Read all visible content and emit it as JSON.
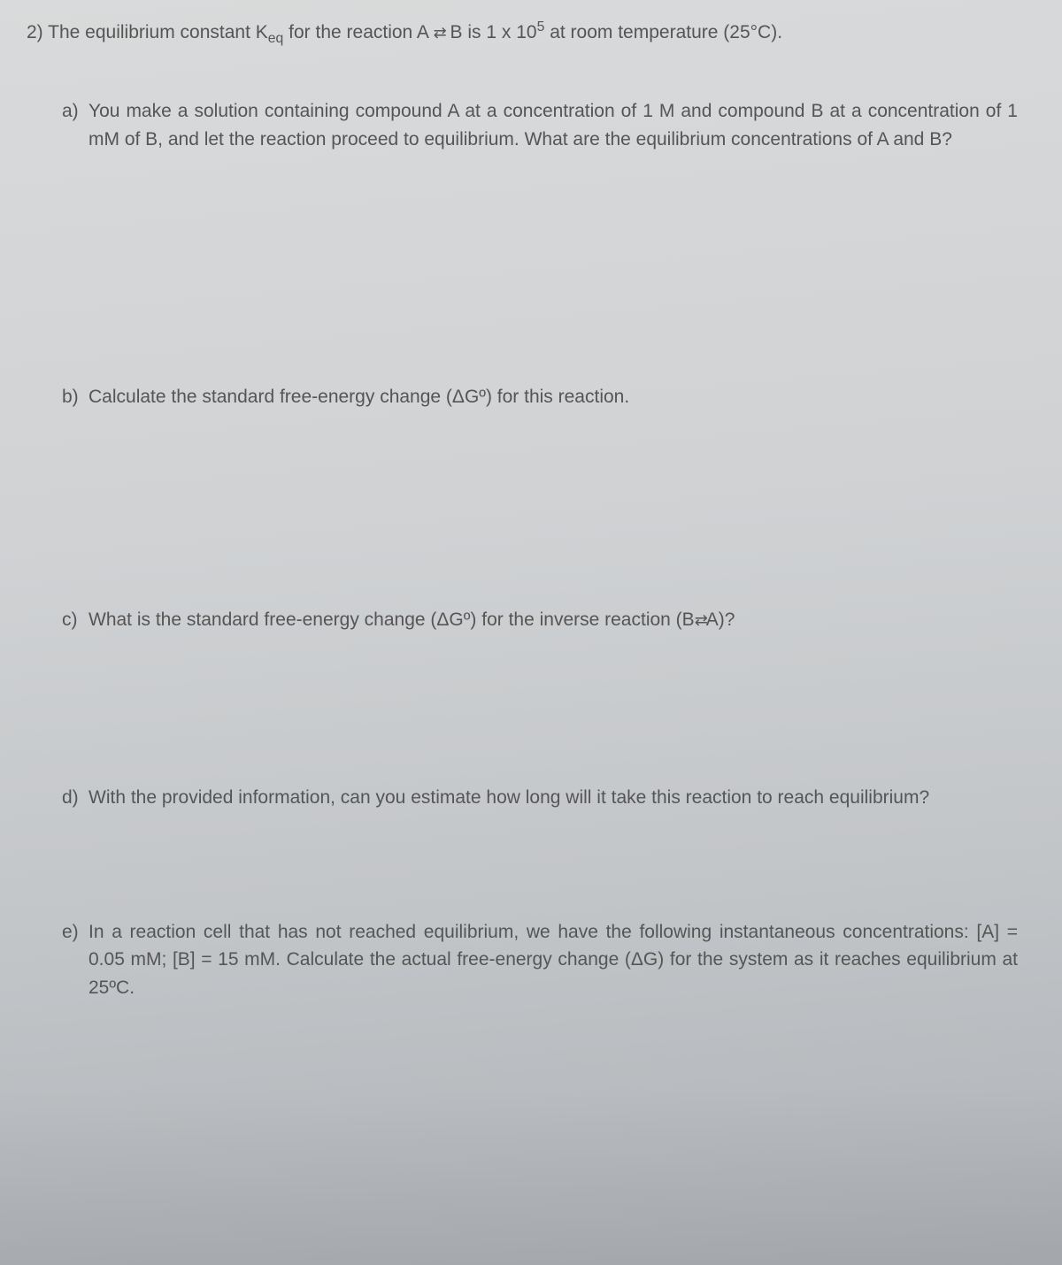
{
  "header": {
    "number": "2)",
    "text_pre": "The equilibrium constant K",
    "text_sub": "eq",
    "text_mid": " for the reaction A ",
    "arrows": "⇄",
    "text_post": " B is 1 x 10",
    "text_sup": "5",
    "text_end": " at room temperature (25°C)."
  },
  "parts": {
    "a": {
      "label": "a)",
      "text": "You make a solution containing compound A at a concentration of 1 M and compound B at a concentration of 1 mM of B, and let the reaction proceed to equilibrium. What are the equilibrium concentrations of A and B?"
    },
    "b": {
      "label": "b)",
      "text": "Calculate the standard free-energy change (ΔGº) for this reaction."
    },
    "c": {
      "label": "c)",
      "text_pre": "What is the standard free-energy change (ΔGº) for the inverse reaction (B",
      "arrows": "⇄",
      "text_post": "A)?"
    },
    "d": {
      "label": "d)",
      "text": "With the provided information, can you estimate how long will it take this reaction to reach equilibrium?"
    },
    "e": {
      "label": "e)",
      "text": "In a reaction cell that has not reached equilibrium, we have the following instantaneous concentrations: [A] = 0.05 mM; [B] = 15 mM. Calculate the actual free-energy change (ΔG) for the system as it reaches equilibrium at 25ºC."
    }
  },
  "style": {
    "text_color": "#555555",
    "font_size_pt": 16,
    "background_gradient": [
      "#d8dadb",
      "#aeb2b6"
    ]
  }
}
